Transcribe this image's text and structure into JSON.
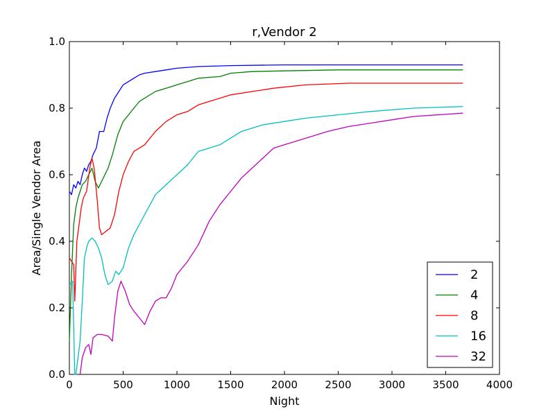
{
  "chart_data": {
    "type": "line",
    "title": "r,Vendor 2",
    "xlabel": "Night",
    "ylabel": "Area/Single Vendor Area",
    "xlim": [
      0,
      4000
    ],
    "ylim": [
      0.0,
      1.0
    ],
    "xticks": [
      0,
      500,
      1000,
      1500,
      2000,
      2500,
      3000,
      3500,
      4000
    ],
    "xtick_labels": [
      "0",
      "500",
      "1000",
      "1500",
      "2000",
      "2500",
      "3000",
      "3500",
      "4000"
    ],
    "yticks": [
      0.0,
      0.2,
      0.4,
      0.6,
      0.8,
      1.0
    ],
    "ytick_labels": [
      "0.0",
      "0.2",
      "0.4",
      "0.6",
      "0.8",
      "1.0"
    ],
    "grid": false,
    "legend_position": "lower-right",
    "series": [
      {
        "name": "2",
        "color": "#0000ff",
        "points": [
          [
            0,
            0.55
          ],
          [
            20,
            0.54
          ],
          [
            40,
            0.57
          ],
          [
            60,
            0.56
          ],
          [
            80,
            0.58
          ],
          [
            100,
            0.57
          ],
          [
            120,
            0.6
          ],
          [
            140,
            0.62
          ],
          [
            160,
            0.61
          ],
          [
            180,
            0.63
          ],
          [
            200,
            0.64
          ],
          [
            220,
            0.66
          ],
          [
            250,
            0.68
          ],
          [
            280,
            0.73
          ],
          [
            320,
            0.73
          ],
          [
            350,
            0.77
          ],
          [
            380,
            0.8
          ],
          [
            420,
            0.83
          ],
          [
            460,
            0.85
          ],
          [
            500,
            0.87
          ],
          [
            550,
            0.88
          ],
          [
            600,
            0.89
          ],
          [
            650,
            0.9
          ],
          [
            700,
            0.905
          ],
          [
            800,
            0.91
          ],
          [
            900,
            0.915
          ],
          [
            1000,
            0.92
          ],
          [
            1200,
            0.925
          ],
          [
            1500,
            0.928
          ],
          [
            2000,
            0.93
          ],
          [
            2500,
            0.93
          ],
          [
            3000,
            0.93
          ],
          [
            3660,
            0.93
          ]
        ]
      },
      {
        "name": "4",
        "color": "#008000",
        "points": [
          [
            0,
            0.1
          ],
          [
            20,
            0.3
          ],
          [
            40,
            0.45
          ],
          [
            60,
            0.5
          ],
          [
            80,
            0.53
          ],
          [
            100,
            0.55
          ],
          [
            120,
            0.57
          ],
          [
            150,
            0.58
          ],
          [
            180,
            0.6
          ],
          [
            210,
            0.62
          ],
          [
            240,
            0.58
          ],
          [
            270,
            0.56
          ],
          [
            300,
            0.58
          ],
          [
            330,
            0.6
          ],
          [
            360,
            0.62
          ],
          [
            400,
            0.66
          ],
          [
            450,
            0.72
          ],
          [
            500,
            0.76
          ],
          [
            550,
            0.78
          ],
          [
            600,
            0.8
          ],
          [
            650,
            0.82
          ],
          [
            700,
            0.83
          ],
          [
            800,
            0.85
          ],
          [
            900,
            0.86
          ],
          [
            1000,
            0.87
          ],
          [
            1100,
            0.88
          ],
          [
            1200,
            0.89
          ],
          [
            1400,
            0.895
          ],
          [
            1500,
            0.905
          ],
          [
            1700,
            0.91
          ],
          [
            2000,
            0.912
          ],
          [
            2500,
            0.915
          ],
          [
            3000,
            0.915
          ],
          [
            3660,
            0.915
          ]
        ]
      },
      {
        "name": "8",
        "color": "#ff0000",
        "points": [
          [
            0,
            0.35
          ],
          [
            20,
            0.34
          ],
          [
            40,
            0.33
          ],
          [
            50,
            0.22
          ],
          [
            70,
            0.4
          ],
          [
            90,
            0.45
          ],
          [
            110,
            0.5
          ],
          [
            130,
            0.53
          ],
          [
            160,
            0.55
          ],
          [
            190,
            0.62
          ],
          [
            210,
            0.65
          ],
          [
            230,
            0.62
          ],
          [
            260,
            0.52
          ],
          [
            280,
            0.44
          ],
          [
            300,
            0.42
          ],
          [
            340,
            0.43
          ],
          [
            380,
            0.44
          ],
          [
            420,
            0.48
          ],
          [
            460,
            0.55
          ],
          [
            500,
            0.6
          ],
          [
            550,
            0.64
          ],
          [
            600,
            0.67
          ],
          [
            650,
            0.68
          ],
          [
            700,
            0.69
          ],
          [
            800,
            0.73
          ],
          [
            900,
            0.76
          ],
          [
            1000,
            0.78
          ],
          [
            1100,
            0.79
          ],
          [
            1200,
            0.81
          ],
          [
            1300,
            0.82
          ],
          [
            1400,
            0.83
          ],
          [
            1500,
            0.84
          ],
          [
            1700,
            0.85
          ],
          [
            1900,
            0.86
          ],
          [
            2200,
            0.87
          ],
          [
            2600,
            0.875
          ],
          [
            3000,
            0.875
          ],
          [
            3660,
            0.875
          ]
        ]
      },
      {
        "name": "16",
        "color": "#00bfbf",
        "points": [
          [
            0,
            0.27
          ],
          [
            30,
            0.28
          ],
          [
            50,
            0.0
          ],
          [
            60,
            0.0
          ],
          [
            80,
            0.05
          ],
          [
            100,
            0.1
          ],
          [
            120,
            0.22
          ],
          [
            140,
            0.35
          ],
          [
            160,
            0.38
          ],
          [
            180,
            0.4
          ],
          [
            210,
            0.41
          ],
          [
            240,
            0.4
          ],
          [
            270,
            0.38
          ],
          [
            300,
            0.35
          ],
          [
            330,
            0.3
          ],
          [
            360,
            0.27
          ],
          [
            400,
            0.28
          ],
          [
            430,
            0.31
          ],
          [
            460,
            0.3
          ],
          [
            500,
            0.32
          ],
          [
            550,
            0.38
          ],
          [
            600,
            0.42
          ],
          [
            650,
            0.45
          ],
          [
            700,
            0.48
          ],
          [
            750,
            0.51
          ],
          [
            800,
            0.54
          ],
          [
            900,
            0.57
          ],
          [
            1000,
            0.6
          ],
          [
            1100,
            0.63
          ],
          [
            1200,
            0.67
          ],
          [
            1300,
            0.68
          ],
          [
            1400,
            0.69
          ],
          [
            1500,
            0.71
          ],
          [
            1600,
            0.73
          ],
          [
            1800,
            0.75
          ],
          [
            2000,
            0.76
          ],
          [
            2200,
            0.77
          ],
          [
            2500,
            0.78
          ],
          [
            2800,
            0.79
          ],
          [
            3200,
            0.8
          ],
          [
            3660,
            0.805
          ]
        ]
      },
      {
        "name": "32",
        "color": "#bf00bf",
        "points": [
          [
            100,
            0.0
          ],
          [
            120,
            0.05
          ],
          [
            150,
            0.08
          ],
          [
            180,
            0.09
          ],
          [
            200,
            0.06
          ],
          [
            220,
            0.11
          ],
          [
            260,
            0.12
          ],
          [
            300,
            0.12
          ],
          [
            360,
            0.115
          ],
          [
            400,
            0.1
          ],
          [
            420,
            0.17
          ],
          [
            450,
            0.25
          ],
          [
            480,
            0.28
          ],
          [
            520,
            0.25
          ],
          [
            560,
            0.21
          ],
          [
            600,
            0.19
          ],
          [
            650,
            0.17
          ],
          [
            700,
            0.15
          ],
          [
            750,
            0.19
          ],
          [
            800,
            0.22
          ],
          [
            850,
            0.23
          ],
          [
            900,
            0.23
          ],
          [
            950,
            0.26
          ],
          [
            1000,
            0.3
          ],
          [
            1100,
            0.34
          ],
          [
            1200,
            0.39
          ],
          [
            1300,
            0.46
          ],
          [
            1400,
            0.51
          ],
          [
            1500,
            0.55
          ],
          [
            1600,
            0.59
          ],
          [
            1700,
            0.62
          ],
          [
            1800,
            0.65
          ],
          [
            1900,
            0.68
          ],
          [
            2000,
            0.69
          ],
          [
            2200,
            0.71
          ],
          [
            2400,
            0.73
          ],
          [
            2600,
            0.745
          ],
          [
            2800,
            0.755
          ],
          [
            3000,
            0.765
          ],
          [
            3200,
            0.775
          ],
          [
            3660,
            0.785
          ]
        ]
      }
    ]
  }
}
